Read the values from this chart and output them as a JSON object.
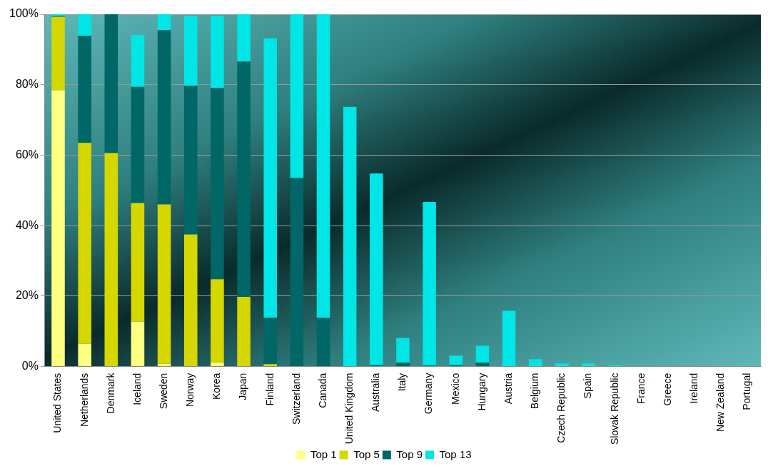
{
  "chart_data": {
    "type": "bar",
    "stacked": true,
    "categories": [
      "United States",
      "Netherlands",
      "Denmark",
      "Iceland",
      "Sweden",
      "Norway",
      "Korea",
      "Japan",
      "Finland",
      "Switzerland",
      "Canada",
      "United Kingdom",
      "Australia",
      "Italy",
      "Germany",
      "Mexico",
      "Hungary",
      "Austria",
      "Belgium",
      "Czech Republic",
      "Spain",
      "Slovak Republic",
      "France",
      "Greece",
      "Ireland",
      "New Zealand",
      "Portugal"
    ],
    "series": [
      {
        "name": "Top 1",
        "color": "#ffff80",
        "values": [
          78.4,
          6.5,
          0,
          12.8,
          0.8,
          0,
          1.1,
          0,
          0,
          0,
          0,
          0,
          0,
          0,
          0,
          0,
          0,
          0,
          0,
          0,
          0,
          0,
          0,
          0,
          0,
          0,
          0
        ]
      },
      {
        "name": "Top 5",
        "color": "#d6d600",
        "values": [
          20.9,
          57,
          60.6,
          33.6,
          45.2,
          37.5,
          23.7,
          19.8,
          0.7,
          0,
          0,
          0,
          0,
          0,
          0,
          0,
          0,
          0,
          0,
          0,
          0,
          0,
          0,
          0,
          0,
          0,
          0
        ]
      },
      {
        "name": "Top 9",
        "color": "#006666",
        "values": [
          0.3,
          30.4,
          39.4,
          33,
          49.5,
          42.2,
          54.3,
          66.8,
          13.1,
          53.5,
          13.8,
          0,
          0.4,
          1.1,
          0.3,
          0.4,
          1.1,
          0,
          0,
          0,
          0,
          0,
          0,
          0,
          0,
          0,
          0
        ]
      },
      {
        "name": "Top 13",
        "color": "#00e5e5",
        "values": [
          0.4,
          6.1,
          0,
          14.7,
          4.5,
          19.9,
          20.5,
          13.4,
          79.4,
          46.5,
          86.2,
          73.7,
          54.4,
          7,
          46.4,
          2.7,
          4.8,
          15.8,
          2.1,
          0.9,
          0.9,
          0.4,
          0,
          0,
          0,
          0,
          0
        ]
      }
    ],
    "ylim": [
      0,
      100
    ],
    "yticks": [
      {
        "value": 0,
        "label": "0%"
      },
      {
        "value": 20,
        "label": "20%"
      },
      {
        "value": 40,
        "label": "40%"
      },
      {
        "value": 60,
        "label": "60%"
      },
      {
        "value": 80,
        "label": "80%"
      },
      {
        "value": 100,
        "label": "100%"
      }
    ],
    "grid": "y",
    "legend": "bottom"
  }
}
